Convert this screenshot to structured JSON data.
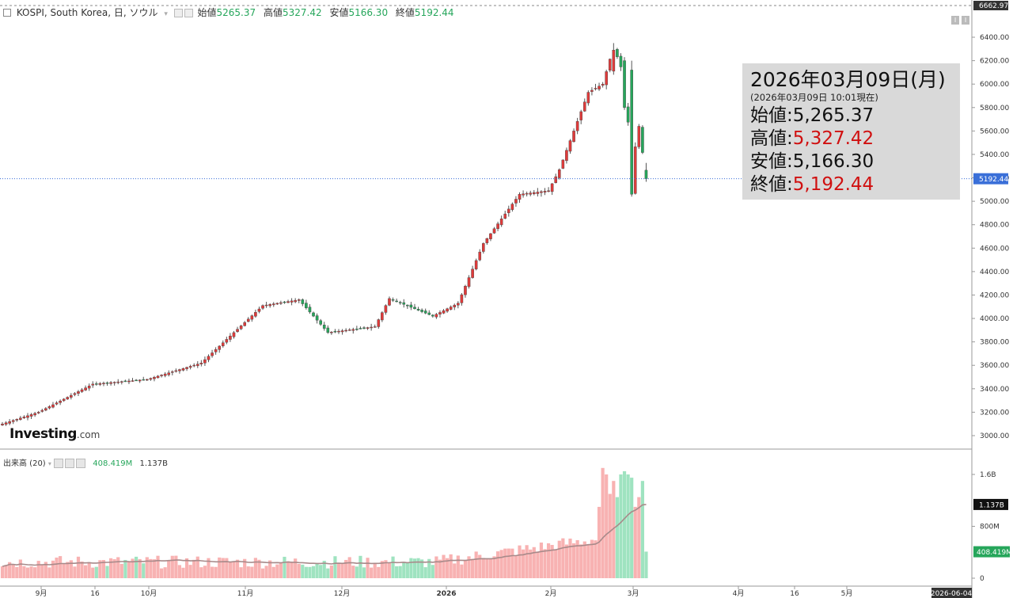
{
  "header": {
    "symbol": "KOSPI, South Korea, 日, ソウル",
    "open_label": "始値",
    "open": "5265.37",
    "high_label": "高値",
    "high": "5327.42",
    "low_label": "安値",
    "low": "5166.30",
    "close_label": "終値",
    "close": "5192.44"
  },
  "infobox": {
    "date": "2026年03月09日(月)",
    "as_of": "(2026年03月09日 10:01現在)",
    "open_label": "始値",
    "open": "5,265.37",
    "high_label": "高値",
    "high": "5,327.42",
    "low_label": "安値",
    "low": "5,166.30",
    "close_label": "終値",
    "close": "5,192.44"
  },
  "volume_header": {
    "label": "出来高 (20)",
    "volume": "408.419M",
    "ma": "1.137B"
  },
  "logo": {
    "main": "Investing",
    "suffix": ".com"
  },
  "colors": {
    "up": "#26a65b",
    "down": "#e03a3a",
    "vol_up": "#9fe3c0",
    "vol_down": "#f8b2b2",
    "ma": "#a88a8a"
  },
  "chart_data": [
    {
      "type": "candlestick",
      "title": "KOSPI, South Korea, 日, ソウル",
      "y_axis_labels": [
        "6400.00",
        "6200.00",
        "6000.00",
        "5800.00",
        "5600.00",
        "5400.00",
        "5200.00",
        "5000.00",
        "4800.00",
        "4600.00",
        "4400.00",
        "4200.00",
        "4000.00",
        "3800.00",
        "3600.00",
        "3400.00",
        "3200.00",
        "3000.00"
      ],
      "ylim": [
        2920,
        6662.97
      ],
      "top_marker": "6662.97",
      "last_price_marker": "5192.44",
      "x_axis_labels": [
        "9月",
        "16",
        "10月",
        "11月",
        "12月",
        "2026",
        "2月",
        "3月",
        "4月",
        "16",
        "5月",
        "2026-06-04"
      ],
      "ohlc_anchor_dates": [
        "2025-09-01",
        "2025-10-01",
        "2025-11-01",
        "2025-12-01",
        "2026-01-02",
        "2026-02-02",
        "2026-02-26",
        "2026-03-03",
        "2026-03-09"
      ],
      "ohlc_anchor_close": [
        3150,
        3460,
        4110,
        3930,
        4330,
        5080,
        6300,
        5790,
        5192.44
      ],
      "last_candle": {
        "open": 5265.37,
        "high": 5327.42,
        "low": 5166.3,
        "close": 5192.44
      }
    },
    {
      "type": "bar",
      "title": "出来高 (20)",
      "y_axis_labels": [
        "1.6B",
        "800M",
        "0"
      ],
      "ylim": [
        0,
        1.95
      ],
      "value_marker": "408.419M",
      "ma_marker": "1.137B",
      "approx_volume_billions_recent": [
        1.1,
        1.7,
        1.6,
        1.3,
        1.5,
        1.25,
        1.6,
        1.65,
        0.41
      ],
      "ma20_last_billions": 1.137
    }
  ]
}
